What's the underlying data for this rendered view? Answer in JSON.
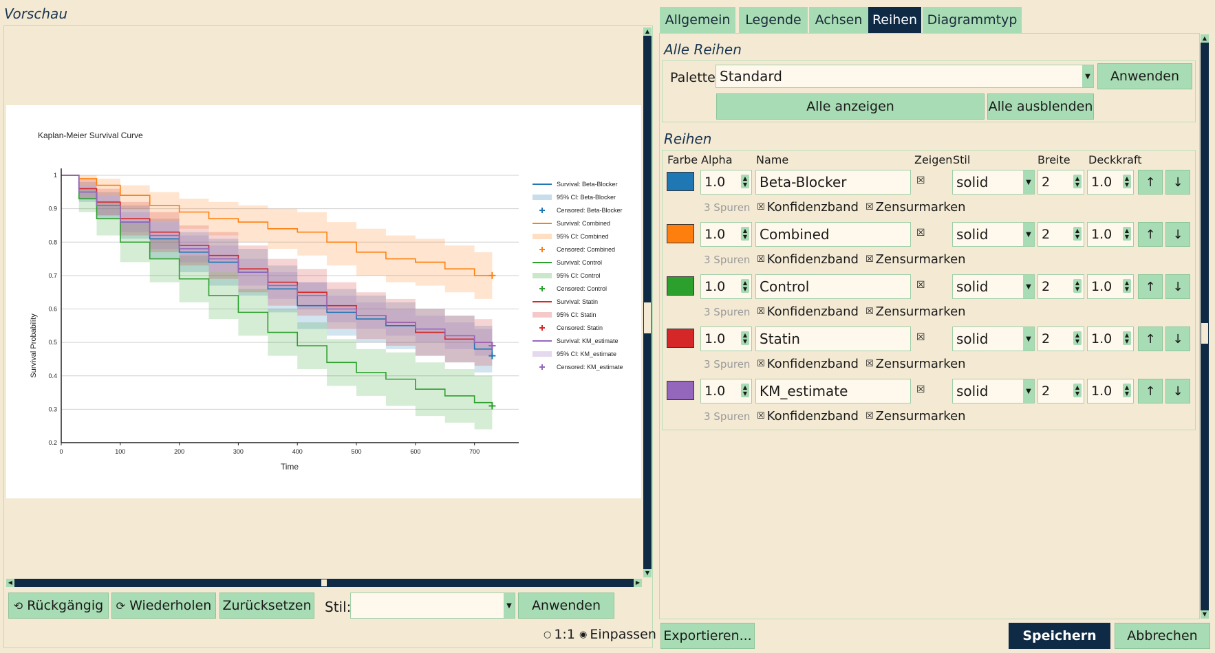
{
  "preview": {
    "title": "Vorschau",
    "undo_label": "Rückgängig",
    "redo_label": "Wiederholen",
    "reset_label": "Zurücksetzen",
    "style_label": "Stil:",
    "style_value": "",
    "apply_label": "Anwenden",
    "zoom_1to1": "1:1",
    "zoom_fit": "Einpassen"
  },
  "tabs": [
    {
      "label": "Allgemein",
      "active": false
    },
    {
      "label": "Legende",
      "active": false
    },
    {
      "label": "Achsen",
      "active": false
    },
    {
      "label": "Reihen",
      "active": true
    },
    {
      "label": "Diagrammtyp",
      "active": false
    }
  ],
  "all_series": {
    "section_title": "Alle Reihen",
    "palette_label": "Palette",
    "palette_value": "Standard",
    "apply_label": "Anwenden",
    "show_all_label": "Alle anzeigen",
    "hide_all_label": "Alle ausblenden"
  },
  "series_section": {
    "title": "Reihen",
    "columns": {
      "color": "Farbe",
      "alpha": "Alpha",
      "name": "Name",
      "show": "Zeigen",
      "style": "Stil",
      "width": "Breite",
      "opacity": "Deckkraft"
    },
    "band_label": "Konfidenzband",
    "censor_label": "Zensurmarken",
    "rows": [
      {
        "color": "#1f77b4",
        "alpha": "1.0",
        "name": "Beta-Blocker",
        "style": "solid",
        "width": "2",
        "opacity": "1.0",
        "traces": "3 Spuren"
      },
      {
        "color": "#ff7f0e",
        "alpha": "1.0",
        "name": "Combined",
        "style": "solid",
        "width": "2",
        "opacity": "1.0",
        "traces": "3 Spuren"
      },
      {
        "color": "#2ca02c",
        "alpha": "1.0",
        "name": "Control",
        "style": "solid",
        "width": "2",
        "opacity": "1.0",
        "traces": "3 Spuren"
      },
      {
        "color": "#d62728",
        "alpha": "1.0",
        "name": "Statin",
        "style": "solid",
        "width": "2",
        "opacity": "1.0",
        "traces": "3 Spuren"
      },
      {
        "color": "#9467bd",
        "alpha": "1.0",
        "name": "KM_estimate",
        "style": "solid",
        "width": "2",
        "opacity": "1.0",
        "traces": "3 Spuren"
      }
    ]
  },
  "footer": {
    "export_label": "Exportieren...",
    "save_label": "Speichern",
    "cancel_label": "Abbrechen"
  },
  "chart_data": {
    "type": "line",
    "title": "Kaplan-Meier Survival Curve",
    "xlabel": "Time",
    "ylabel": "Survival Probability",
    "xlim": [
      0,
      775
    ],
    "ylim": [
      0.2,
      1.0
    ],
    "xticks": [
      "0",
      "100",
      "200",
      "300",
      "400",
      "500",
      "600",
      "700"
    ],
    "yticks": [
      "0.2",
      "0.3",
      "0.4",
      "0.5",
      "0.6",
      "0.7",
      "0.8",
      "0.9",
      "1"
    ],
    "grid": true,
    "legend_position": "right",
    "legend": [
      "Survival: Beta-Blocker",
      "95% CI: Beta-Blocker",
      "Censored: Beta-Blocker",
      "Survival: Combined",
      "95% CI: Combined",
      "Censored: Combined",
      "Survival: Control",
      "95% CI: Control",
      "Censored: Control",
      "Survival: Statin",
      "95% CI: Statin",
      "Censored: Statin",
      "Survival: KM_estimate",
      "95% CI: KM_estimate",
      "Censored: KM_estimate"
    ],
    "series": [
      {
        "name": "Beta-Blocker",
        "color": "#1f77b4",
        "x": [
          0,
          30,
          60,
          100,
          150,
          200,
          250,
          300,
          350,
          400,
          450,
          500,
          550,
          600,
          650,
          700,
          730
        ],
        "y": [
          1.0,
          0.95,
          0.91,
          0.86,
          0.81,
          0.77,
          0.74,
          0.71,
          0.66,
          0.61,
          0.59,
          0.57,
          0.55,
          0.53,
          0.51,
          0.48,
          0.46
        ],
        "lower": [
          1.0,
          0.92,
          0.87,
          0.81,
          0.75,
          0.71,
          0.67,
          0.64,
          0.59,
          0.54,
          0.52,
          0.5,
          0.48,
          0.46,
          0.44,
          0.41,
          0.39
        ],
        "upper": [
          1.0,
          0.98,
          0.95,
          0.91,
          0.87,
          0.83,
          0.81,
          0.78,
          0.73,
          0.68,
          0.66,
          0.64,
          0.62,
          0.6,
          0.58,
          0.55,
          0.53
        ]
      },
      {
        "name": "Combined",
        "color": "#ff7f0e",
        "x": [
          0,
          30,
          60,
          100,
          150,
          200,
          250,
          300,
          350,
          400,
          450,
          500,
          550,
          600,
          650,
          700,
          730
        ],
        "y": [
          1.0,
          0.99,
          0.97,
          0.94,
          0.91,
          0.89,
          0.87,
          0.86,
          0.84,
          0.83,
          0.8,
          0.77,
          0.75,
          0.74,
          0.72,
          0.7,
          0.7
        ],
        "lower": [
          1.0,
          0.97,
          0.94,
          0.9,
          0.86,
          0.84,
          0.82,
          0.8,
          0.78,
          0.76,
          0.73,
          0.7,
          0.68,
          0.67,
          0.65,
          0.63,
          0.63
        ],
        "upper": [
          1.0,
          1.0,
          0.99,
          0.97,
          0.95,
          0.93,
          0.92,
          0.91,
          0.9,
          0.89,
          0.86,
          0.84,
          0.82,
          0.81,
          0.79,
          0.77,
          0.77
        ]
      },
      {
        "name": "Control",
        "color": "#2ca02c",
        "x": [
          0,
          30,
          60,
          100,
          150,
          200,
          250,
          300,
          350,
          400,
          450,
          500,
          550,
          600,
          650,
          700,
          730
        ],
        "y": [
          1.0,
          0.93,
          0.87,
          0.8,
          0.75,
          0.69,
          0.64,
          0.59,
          0.53,
          0.49,
          0.44,
          0.41,
          0.39,
          0.36,
          0.34,
          0.32,
          0.31
        ],
        "lower": [
          1.0,
          0.89,
          0.82,
          0.74,
          0.68,
          0.62,
          0.57,
          0.52,
          0.46,
          0.42,
          0.37,
          0.34,
          0.31,
          0.28,
          0.26,
          0.24,
          0.23
        ],
        "upper": [
          1.0,
          0.96,
          0.92,
          0.86,
          0.81,
          0.76,
          0.71,
          0.66,
          0.6,
          0.56,
          0.51,
          0.48,
          0.47,
          0.44,
          0.42,
          0.4,
          0.39
        ]
      },
      {
        "name": "Statin",
        "color": "#d62728",
        "x": [
          0,
          30,
          60,
          100,
          150,
          200,
          250,
          300,
          350,
          400,
          450,
          500,
          550,
          600,
          650,
          700,
          730
        ],
        "y": [
          1.0,
          0.96,
          0.92,
          0.87,
          0.83,
          0.79,
          0.76,
          0.72,
          0.68,
          0.65,
          0.61,
          0.58,
          0.56,
          0.53,
          0.51,
          0.5,
          0.49
        ],
        "lower": [
          1.0,
          0.93,
          0.88,
          0.82,
          0.77,
          0.73,
          0.69,
          0.65,
          0.61,
          0.58,
          0.54,
          0.51,
          0.49,
          0.46,
          0.44,
          0.43,
          0.42
        ],
        "upper": [
          1.0,
          0.99,
          0.96,
          0.92,
          0.89,
          0.85,
          0.83,
          0.79,
          0.75,
          0.72,
          0.68,
          0.65,
          0.63,
          0.6,
          0.58,
          0.57,
          0.56
        ]
      },
      {
        "name": "KM_estimate",
        "color": "#9467bd",
        "x": [
          0,
          30,
          60,
          100,
          150,
          200,
          250,
          300,
          350,
          400,
          450,
          500,
          550,
          600,
          650,
          700,
          730
        ],
        "y": [
          1.0,
          0.95,
          0.91,
          0.86,
          0.82,
          0.78,
          0.75,
          0.71,
          0.67,
          0.64,
          0.6,
          0.58,
          0.56,
          0.54,
          0.52,
          0.5,
          0.49
        ],
        "lower": [
          1.0,
          0.93,
          0.88,
          0.83,
          0.78,
          0.74,
          0.71,
          0.67,
          0.63,
          0.6,
          0.56,
          0.54,
          0.52,
          0.5,
          0.48,
          0.46,
          0.45
        ],
        "upper": [
          1.0,
          0.97,
          0.94,
          0.89,
          0.86,
          0.82,
          0.79,
          0.75,
          0.71,
          0.68,
          0.64,
          0.62,
          0.6,
          0.58,
          0.56,
          0.54,
          0.53
        ]
      }
    ]
  }
}
